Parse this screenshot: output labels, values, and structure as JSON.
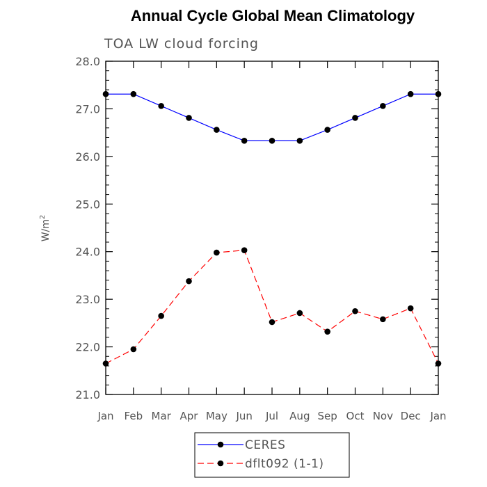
{
  "chart_data": {
    "type": "line",
    "title": "Annual Cycle Global Mean Climatology",
    "subtitle": "TOA LW cloud forcing",
    "ylabel": "W/m",
    "ylabel_superscript": "2",
    "xlabel": "",
    "ylim": [
      21.0,
      28.0
    ],
    "yticks": [
      "21.0",
      "22.0",
      "23.0",
      "24.0",
      "25.0",
      "26.0",
      "27.0",
      "28.0"
    ],
    "categories": [
      "Jan",
      "Feb",
      "Mar",
      "Apr",
      "May",
      "Jun",
      "Jul",
      "Aug",
      "Sep",
      "Oct",
      "Nov",
      "Dec",
      "Jan"
    ],
    "series": [
      {
        "name": "CERES",
        "color": "#0000ff",
        "dash": "solid",
        "marker": "filled-circle",
        "values": [
          27.31,
          27.31,
          27.06,
          26.81,
          26.56,
          26.33,
          26.33,
          26.33,
          26.56,
          26.81,
          27.06,
          27.31,
          27.31
        ]
      },
      {
        "name": "dflt092 (1-1)",
        "color": "#ff0000",
        "dash": "dashed",
        "marker": "filled-circle",
        "values": [
          21.65,
          21.95,
          22.65,
          23.38,
          23.98,
          24.03,
          22.52,
          22.71,
          22.32,
          22.75,
          22.58,
          22.81,
          21.65
        ]
      }
    ],
    "grid": false,
    "legend_position": "bottom-center"
  }
}
